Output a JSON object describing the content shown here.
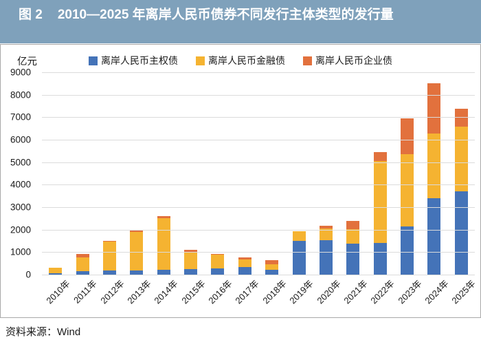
{
  "header": {
    "figure_label": "图 2",
    "title": "2010—2025 年离岸人民币债券不同发行主体类型的发行量"
  },
  "footer": {
    "source": "资料来源：Wind"
  },
  "colors": {
    "title_bar_bg": "#7FA1BB",
    "sovereign_blue": "#4473B8",
    "financial_yellow": "#F5B331",
    "corporate_orange": "#E2713D",
    "gridline": "#DBDBDB",
    "box_border": "#A8A8A8"
  },
  "chart_data": {
    "type": "bar",
    "stacked": true,
    "title": "2010—2025 年离岸人民币债券不同发行主体类型的发行量",
    "unit": "亿元",
    "xlabel": "",
    "ylabel": "亿元",
    "ylim": [
      0,
      9000
    ],
    "ytick_step": 1000,
    "grid": true,
    "legend_position": "top",
    "categories": [
      "2010年",
      "2011年",
      "2012年",
      "2013年",
      "2014年",
      "2015年",
      "2016年",
      "2017年",
      "2018年",
      "2019年",
      "2020年",
      "2021年",
      "2022年",
      "2023年",
      "2024年",
      "2025年"
    ],
    "series": [
      {
        "name": "离岸人民币主权债",
        "color": "#4473B8",
        "values": [
          70,
          150,
          170,
          180,
          220,
          250,
          280,
          330,
          230,
          1490,
          1530,
          1370,
          1400,
          2150,
          3400,
          3700
        ]
      },
      {
        "name": "离岸人民币金融债",
        "color": "#F5B331",
        "values": [
          230,
          630,
          1290,
          1730,
          2280,
          760,
          600,
          350,
          240,
          450,
          510,
          640,
          3650,
          3210,
          2870,
          2890
        ]
      },
      {
        "name": "离岸人民币企业债",
        "color": "#E2713D",
        "values": [
          0,
          130,
          40,
          90,
          100,
          80,
          50,
          100,
          160,
          0,
          120,
          380,
          400,
          1590,
          2230,
          790
        ]
      }
    ]
  }
}
